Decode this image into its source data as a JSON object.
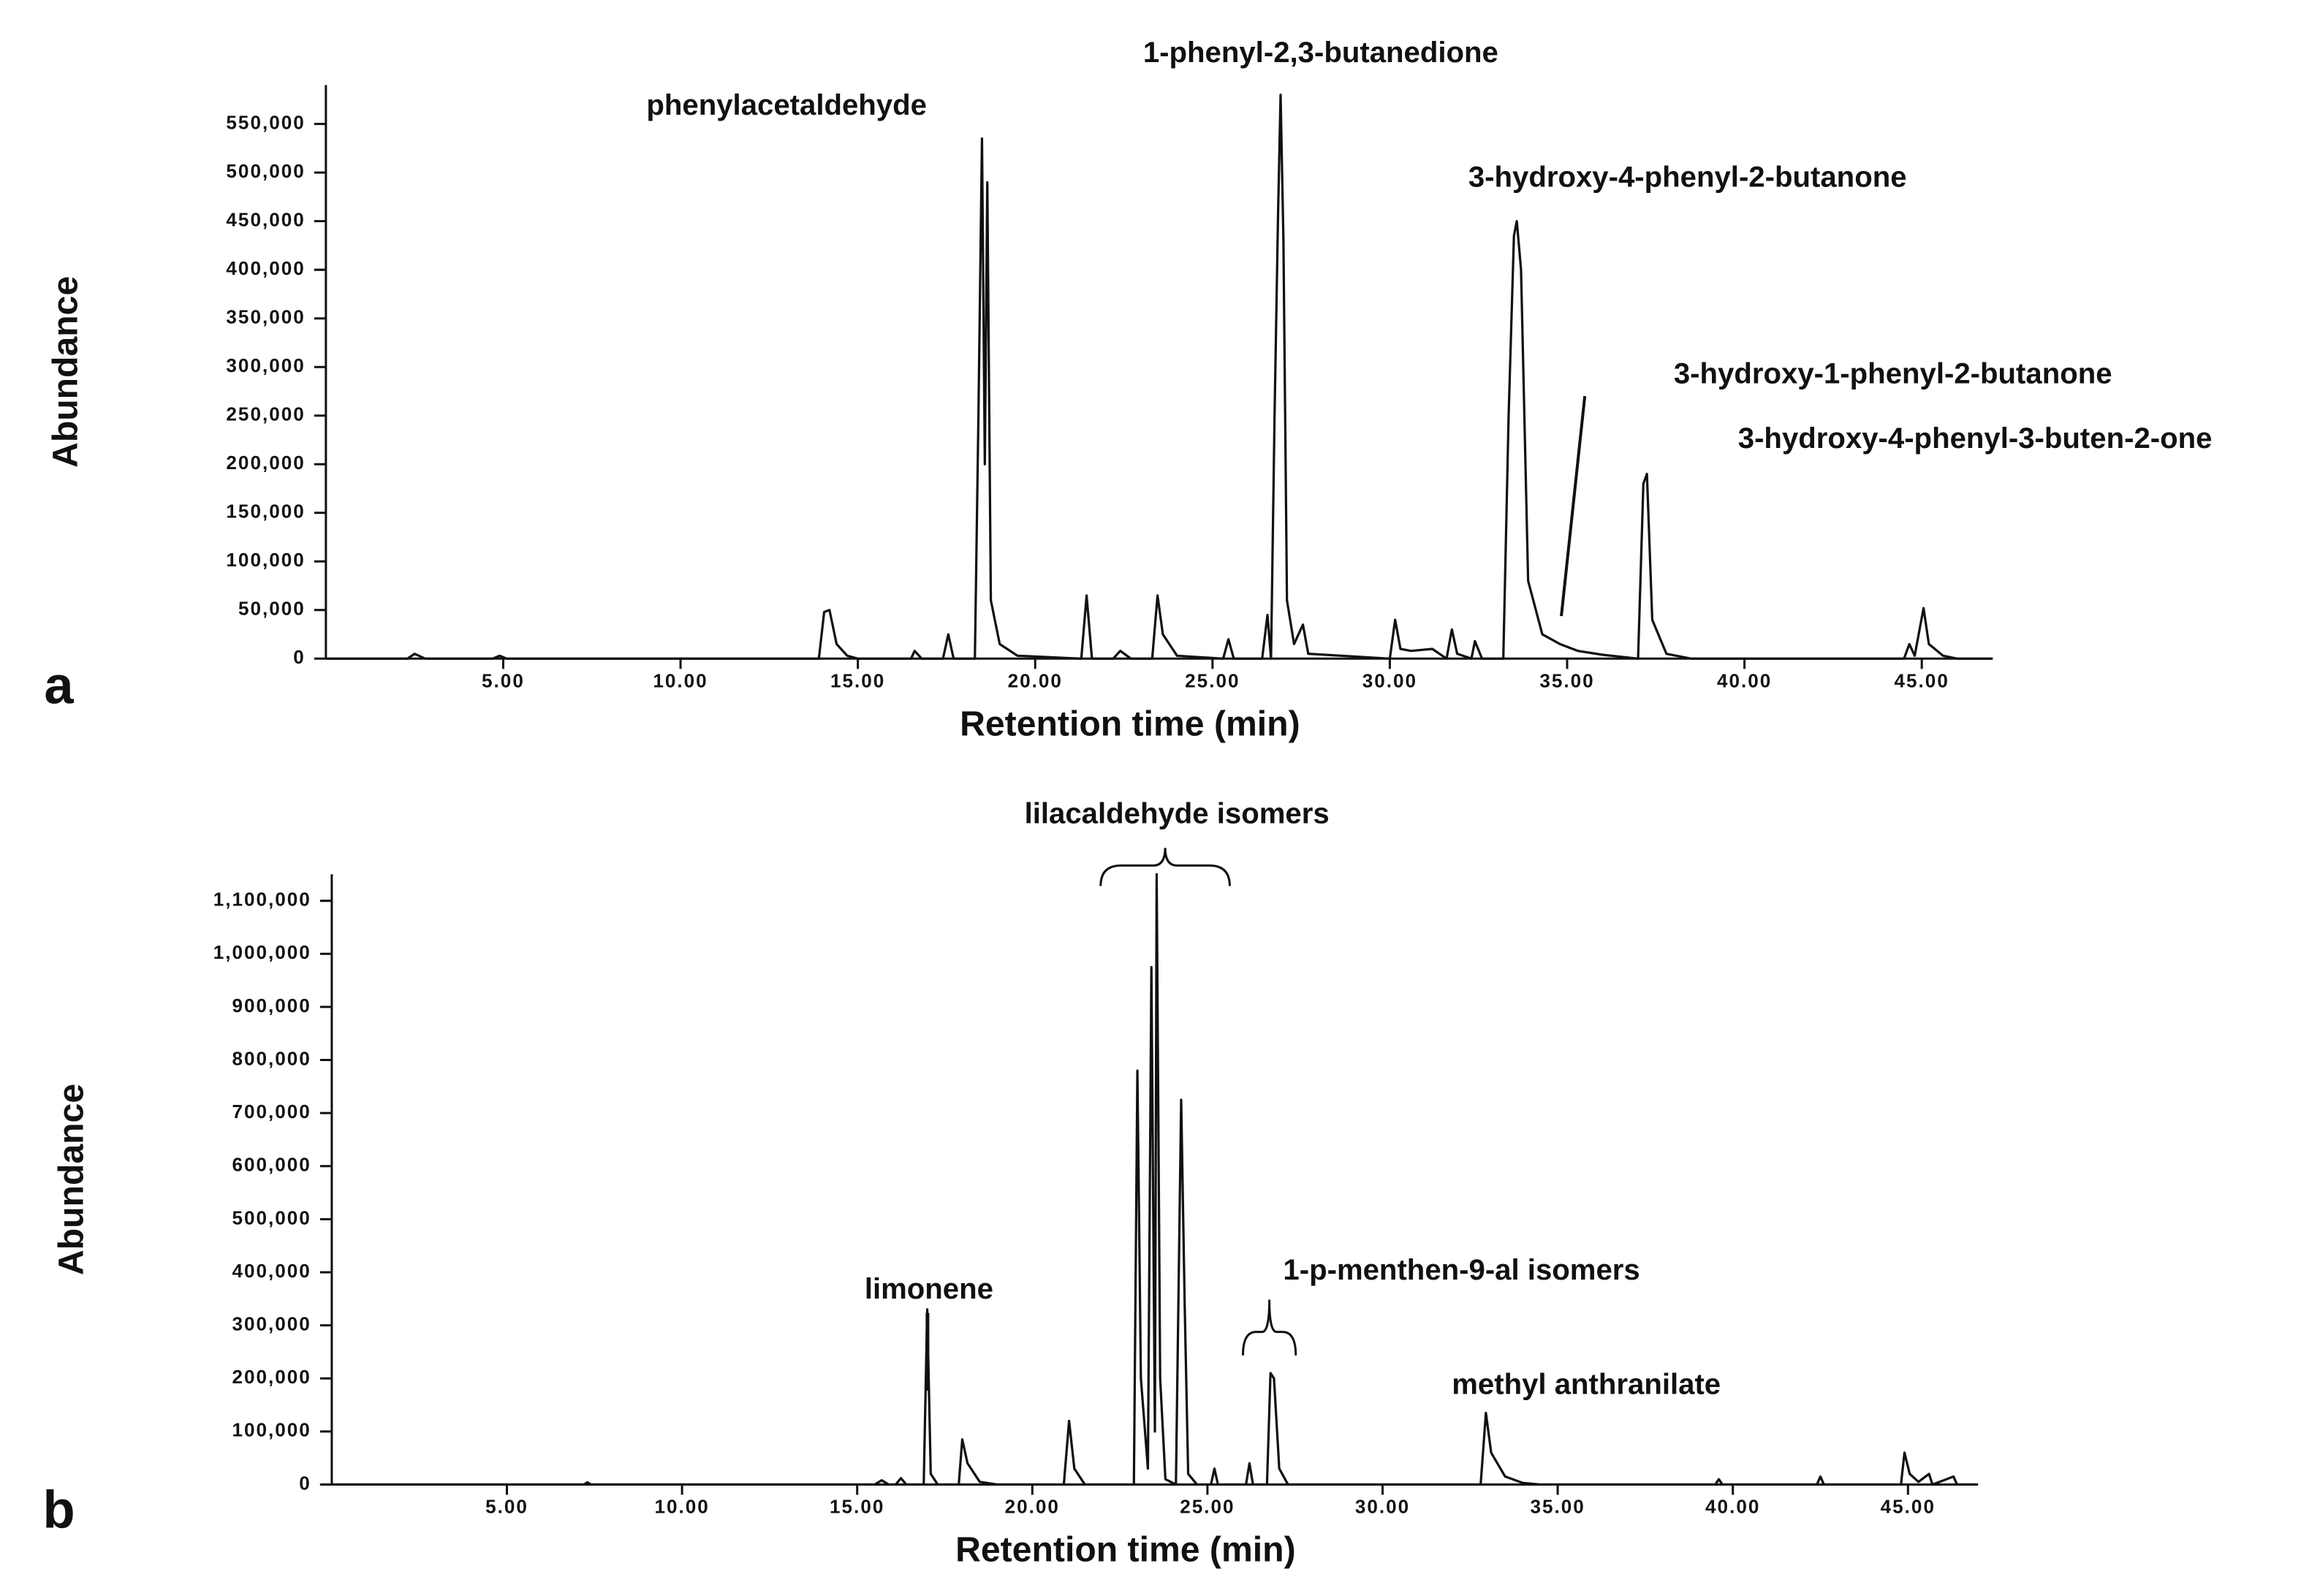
{
  "chart_data": [
    {
      "type": "line",
      "label": "a",
      "xlabel": "Retention time (min)",
      "ylabel": "Abundance",
      "annotations": [
        "phenylacetaldehyde",
        "1-phenyl-2,3-butanedione",
        "3-hydroxy-4-phenyl-2-butanone",
        "3-hydroxy-1-phenyl-2-butanone",
        "3-hydroxy-4-phenyl-3-buten-2-one"
      ],
      "xlim": [
        0,
        47
      ],
      "ylim": [
        0,
        590000
      ],
      "color": "#111111",
      "xticks": [
        {
          "value": 5,
          "label": "5.00"
        },
        {
          "value": 10,
          "label": "10.00"
        },
        {
          "value": 15,
          "label": "15.00"
        },
        {
          "value": 20,
          "label": "20.00"
        },
        {
          "value": 25,
          "label": "25.00"
        },
        {
          "value": 30,
          "label": "30.00"
        },
        {
          "value": 35,
          "label": "35.00"
        },
        {
          "value": 40,
          "label": "40.00"
        },
        {
          "value": 45,
          "label": "45.00"
        }
      ],
      "yticks": [
        0,
        {
          "value": 50000,
          "label": "50,000"
        },
        {
          "value": 100000,
          "label": "100,000"
        },
        {
          "value": 150000,
          "label": "150,000"
        },
        {
          "value": 200000,
          "label": "200,000"
        },
        {
          "value": 250000,
          "label": "250,000"
        },
        {
          "value": 300000,
          "label": "300,000"
        },
        {
          "value": 350000,
          "label": "350,000"
        },
        {
          "value": 400000,
          "label": "400,000"
        },
        {
          "value": 450000,
          "label": "450,000"
        },
        {
          "value": 500000,
          "label": "500,000"
        },
        {
          "value": 550000,
          "label": "550,000"
        }
      ],
      "x": [
        0,
        2.3,
        2.5,
        2.8,
        4.7,
        4.9,
        5.1,
        13.9,
        14.05,
        14.2,
        14.4,
        14.7,
        15,
        16.5,
        16.6,
        16.8,
        17.4,
        17.55,
        17.7,
        18.3,
        18.4,
        18.5,
        18.58,
        18.65,
        18.75,
        19,
        19.5,
        21.3,
        21.45,
        21.6,
        22.2,
        22.4,
        22.7,
        23.3,
        23.45,
        23.6,
        24,
        25.3,
        25.45,
        25.6,
        26.4,
        26.55,
        26.65,
        26.75,
        26.85,
        26.92,
        27.0,
        27.1,
        27.3,
        27.55,
        27.7,
        30.0,
        30.15,
        30.3,
        30.6,
        31.2,
        31.6,
        31.75,
        31.9,
        32.3,
        32.4,
        32.6,
        33.2,
        33.35,
        33.5,
        33.58,
        33.7,
        33.9,
        34.3,
        34.8,
        35.3,
        36,
        37.0,
        37.15,
        37.25,
        37.4,
        37.8,
        38.5,
        44.5,
        44.65,
        44.8,
        45.05,
        45.2,
        45.6,
        46,
        47
      ],
      "values": [
        0,
        0,
        5000,
        0,
        0,
        3000,
        0,
        0,
        48000,
        50000,
        15000,
        3000,
        0,
        0,
        8000,
        0,
        0,
        25000,
        0,
        0,
        250000,
        535000,
        200000,
        490000,
        60000,
        15000,
        3000,
        0,
        65000,
        0,
        0,
        8000,
        0,
        0,
        65000,
        25000,
        3000,
        0,
        20000,
        0,
        0,
        45000,
        0,
        250000,
        460000,
        580000,
        430000,
        60000,
        15000,
        35000,
        5000,
        0,
        40000,
        10000,
        8000,
        10000,
        0,
        30000,
        5000,
        0,
        18000,
        0,
        0,
        250000,
        435000,
        450000,
        400000,
        80000,
        25000,
        15000,
        8000,
        4000,
        0,
        180000,
        190000,
        40000,
        5000,
        0,
        0,
        15000,
        3000,
        52000,
        15000,
        3000,
        0,
        0
      ]
    },
    {
      "type": "line",
      "label": "b",
      "xlabel": "Retention time (min)",
      "ylabel": "Abundance",
      "annotations": [
        "lilacaldehyde isomers",
        "limonene",
        "1-p-menthen-9-al isomers",
        "methyl anthranilate"
      ],
      "xlim": [
        0,
        47
      ],
      "ylim": [
        0,
        1150000
      ],
      "color": "#111111",
      "xticks": [
        {
          "value": 5,
          "label": "5.00"
        },
        {
          "value": 10,
          "label": "10.00"
        },
        {
          "value": 15,
          "label": "15.00"
        },
        {
          "value": 20,
          "label": "20.00"
        },
        {
          "value": 25,
          "label": "25.00"
        },
        {
          "value": 30,
          "label": "30.00"
        },
        {
          "value": 35,
          "label": "35.00"
        },
        {
          "value": 40,
          "label": "40.00"
        },
        {
          "value": 45,
          "label": "45.00"
        }
      ],
      "yticks": [
        0,
        {
          "value": 100000,
          "label": "100,000"
        },
        {
          "value": 200000,
          "label": "200,000"
        },
        {
          "value": 300000,
          "label": "300,000"
        },
        {
          "value": 400000,
          "label": "400,000"
        },
        {
          "value": 500000,
          "label": "500,000"
        },
        {
          "value": 600000,
          "label": "600,000"
        },
        {
          "value": 700000,
          "label": "700,000"
        },
        {
          "value": 800000,
          "label": "800,000"
        },
        {
          "value": 900000,
          "label": "900,000"
        },
        {
          "value": 1000000,
          "label": "1,000,000"
        },
        {
          "value": 1100000,
          "label": "1,100,000"
        }
      ],
      "x": [
        0,
        7.2,
        7.3,
        7.4,
        15.5,
        15.7,
        15.9,
        16.1,
        16.25,
        16.4,
        16.9,
        17.0,
        17.1,
        17.3,
        17.9,
        18.0,
        18.15,
        18.5,
        19,
        20.9,
        21.05,
        21.2,
        21.5,
        22.9,
        23.0,
        23.1,
        23.3,
        23.4,
        23.5,
        23.55,
        23.65,
        23.8,
        24.1,
        24.25,
        24.35,
        24.45,
        24.7,
        25.1,
        25.2,
        25.3,
        26.1,
        26.2,
        26.3,
        26.7,
        26.8,
        26.9,
        27.05,
        27.3,
        32.8,
        32.95,
        33.1,
        33.5,
        34,
        34.5,
        39.5,
        39.6,
        39.7,
        42.4,
        42.5,
        42.6,
        44.8,
        44.9,
        45.05,
        45.3,
        45.6,
        45.7,
        46.3,
        46.4,
        47
      ],
      "values": [
        0,
        0,
        4000,
        0,
        0,
        8000,
        0,
        0,
        12000,
        0,
        0,
        330000,
        20000,
        0,
        0,
        85000,
        40000,
        5000,
        0,
        0,
        120000,
        30000,
        0,
        0,
        780000,
        200000,
        30000,
        975000,
        100000,
        1150000,
        200000,
        10000,
        0,
        725000,
        340000,
        20000,
        0,
        0,
        30000,
        0,
        0,
        40000,
        0,
        0,
        210000,
        200000,
        30000,
        0,
        0,
        135000,
        60000,
        15000,
        3000,
        0,
        0,
        10000,
        0,
        0,
        15000,
        0,
        0,
        60000,
        20000,
        5000,
        20000,
        0,
        15000,
        0,
        0
      ]
    }
  ]
}
